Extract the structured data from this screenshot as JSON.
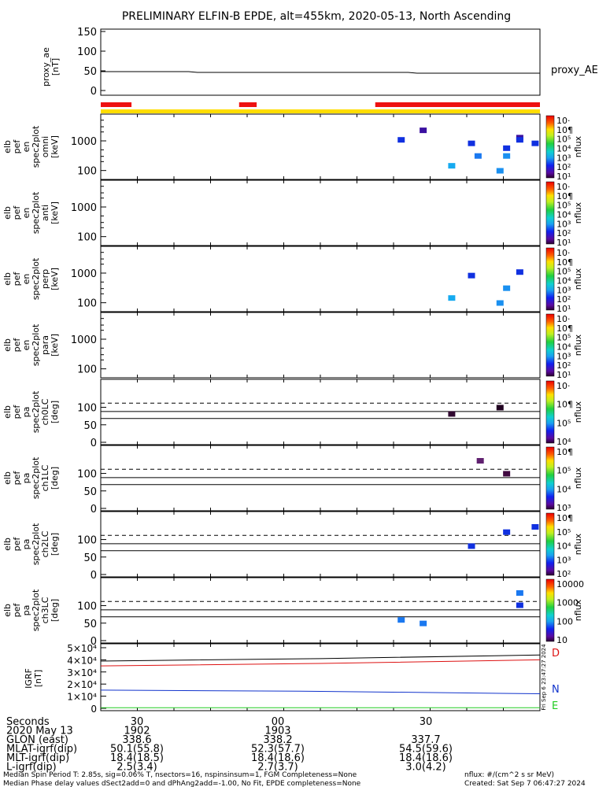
{
  "title": "PRELIMINARY ELFIN-B EPDE, alt=455km, 2020-05-13, North Ascending",
  "colors": {
    "red_bar": "#ee1111",
    "yellow_bar": "#ffdd00",
    "igrf_D": "#dd1111",
    "igrf_N": "#1133cc",
    "igrf_E": "#22cc22"
  },
  "chart_data": [
    {
      "id": "proxy_ae",
      "type": "line",
      "ylabel": [
        "proxy_ae",
        "[nT]"
      ],
      "yticks": [
        "150",
        "100",
        "50",
        "0"
      ],
      "ylim": [
        0,
        150
      ],
      "series": [
        {
          "name": "proxy_AE",
          "points": [
            [
              0,
              48
            ],
            [
              0.2,
              48
            ],
            [
              0.22,
              46
            ],
            [
              0.7,
              46
            ],
            [
              0.72,
              44
            ],
            [
              1,
              44
            ]
          ]
        }
      ]
    },
    {
      "id": "flag_bars",
      "type": "bar",
      "red_segments": [
        [
          0.0,
          0.07
        ],
        [
          0.315,
          0.355
        ],
        [
          0.625,
          1.0
        ]
      ],
      "yellow_segment": [
        0.0,
        1.0
      ]
    },
    {
      "id": "omni",
      "type": "heatmap",
      "ylabel": [
        "elb",
        "pef",
        "en",
        "spec2plot",
        "omni",
        "[keV]"
      ],
      "yticks": [
        "1000",
        "100"
      ],
      "ylim_log": [
        50,
        8000
      ],
      "colorbar_label": "nflux",
      "colorbar_ticks": [
        "10·",
        "10¶",
        "10⁵",
        "10⁴",
        "10³",
        "10²",
        "10¹"
      ],
      "cells": [
        {
          "t": 0.685,
          "e": 1050,
          "c": "#1030e0"
        },
        {
          "t": 0.735,
          "e": 2200,
          "c": "#3a10a0"
        },
        {
          "t": 0.8,
          "e": 140,
          "c": "#16aaf0"
        },
        {
          "t": 0.845,
          "e": 800,
          "c": "#1030e0"
        },
        {
          "t": 0.86,
          "e": 300,
          "c": "#1a78f0"
        },
        {
          "t": 0.91,
          "e": 95,
          "c": "#1a90f0"
        },
        {
          "t": 0.925,
          "e": 550,
          "c": "#1030e0"
        },
        {
          "t": 0.925,
          "e": 300,
          "c": "#1a90f0"
        },
        {
          "t": 0.955,
          "e": 1250,
          "c": "#3a10a0"
        },
        {
          "t": 0.955,
          "e": 1050,
          "c": "#1030e0"
        },
        {
          "t": 0.99,
          "e": 800,
          "c": "#1030e0"
        }
      ]
    },
    {
      "id": "anti",
      "type": "heatmap",
      "ylabel": [
        "elb",
        "pef",
        "en",
        "spec2plot",
        "anti",
        "[keV]"
      ],
      "yticks": [
        "1000",
        "100"
      ],
      "ylim_log": [
        50,
        8000
      ],
      "colorbar_label": "nflux",
      "colorbar_ticks": [
        "10·",
        "10¶",
        "10⁵",
        "10⁴",
        "10³",
        "10²",
        "10¹"
      ],
      "cells": []
    },
    {
      "id": "perp",
      "type": "heatmap",
      "ylabel": [
        "elb",
        "pef",
        "en",
        "spec2plot",
        "perp",
        "[keV]"
      ],
      "yticks": [
        "1000",
        "100"
      ],
      "ylim_log": [
        50,
        8000
      ],
      "colorbar_label": "nflux",
      "colorbar_ticks": [
        "10·",
        "10¶",
        "10⁵",
        "10⁴",
        "10³",
        "10²",
        "10¹"
      ],
      "cells": [
        {
          "t": 0.8,
          "e": 140,
          "c": "#16aaf0"
        },
        {
          "t": 0.845,
          "e": 800,
          "c": "#1030e0"
        },
        {
          "t": 0.91,
          "e": 95,
          "c": "#1a90f0"
        },
        {
          "t": 0.925,
          "e": 300,
          "c": "#1a90f0"
        },
        {
          "t": 0.955,
          "e": 1050,
          "c": "#1030e0"
        }
      ]
    },
    {
      "id": "para",
      "type": "heatmap",
      "ylabel": [
        "elb",
        "pef",
        "en",
        "spec2plot",
        "para",
        "[keV]"
      ],
      "yticks": [
        "1000",
        "100"
      ],
      "ylim_log": [
        50,
        8000
      ],
      "colorbar_label": "nflux",
      "colorbar_ticks": [
        "10·",
        "10¶",
        "10⁵",
        "10⁴",
        "10³",
        "10²",
        "10¹"
      ],
      "cells": []
    },
    {
      "id": "ch0LC",
      "type": "heatmap",
      "ylabel": [
        "elb",
        "pef",
        "pa",
        "spec2plot",
        "ch0LC",
        "[deg]"
      ],
      "yticks": [
        "100",
        "50",
        "0"
      ],
      "ylim": [
        0,
        180
      ],
      "colorbar_label": "nflux",
      "colorbar_ticks": [
        "10·",
        "10¶",
        "10⁵",
        "10⁴"
      ],
      "cells": [
        {
          "t": 0.8,
          "pa": 80,
          "c": "#300830"
        },
        {
          "t": 0.91,
          "pa": 98,
          "c": "#200020"
        }
      ]
    },
    {
      "id": "ch1LC",
      "type": "heatmap",
      "ylabel": [
        "elb",
        "pef",
        "pa",
        "spec2plot",
        "ch1LC",
        "[deg]"
      ],
      "yticks": [
        "100",
        "50",
        "0"
      ],
      "ylim": [
        0,
        180
      ],
      "colorbar_label": "nflux",
      "colorbar_ticks": [
        "10¶",
        "10⁵",
        "10⁴",
        "10³"
      ],
      "cells": [
        {
          "t": 0.865,
          "pa": 135,
          "c": "#602070"
        },
        {
          "t": 0.925,
          "pa": 98,
          "c": "#400840"
        }
      ]
    },
    {
      "id": "ch2LC",
      "type": "heatmap",
      "ylabel": [
        "elb",
        "pef",
        "pa",
        "spec2plot",
        "ch2LC",
        "[deg]"
      ],
      "yticks": [
        "100",
        "50",
        "0"
      ],
      "ylim": [
        0,
        180
      ],
      "colorbar_label": "nflux",
      "colorbar_ticks": [
        "10¶",
        "10⁵",
        "10⁴",
        "10³",
        "10²"
      ],
      "cells": [
        {
          "t": 0.845,
          "pa": 80,
          "c": "#1030e0"
        },
        {
          "t": 0.925,
          "pa": 120,
          "c": "#1030e0"
        },
        {
          "t": 0.99,
          "pa": 135,
          "c": "#1030e0"
        }
      ]
    },
    {
      "id": "ch3LC",
      "type": "heatmap",
      "ylabel": [
        "elb",
        "pef",
        "pa",
        "spec2plot",
        "ch3LC",
        "[deg]"
      ],
      "yticks": [
        "100",
        "50",
        "0"
      ],
      "ylim": [
        0,
        180
      ],
      "colorbar_label": "nflux",
      "colorbar_ticks": [
        "10000",
        "1000",
        "100",
        "10"
      ],
      "cells": [
        {
          "t": 0.685,
          "pa": 58,
          "c": "#1a78f0"
        },
        {
          "t": 0.735,
          "pa": 48,
          "c": "#1a78f0"
        },
        {
          "t": 0.955,
          "pa": 135,
          "c": "#1a78f0"
        },
        {
          "t": 0.955,
          "pa": 100,
          "c": "#1030e0"
        }
      ]
    },
    {
      "id": "igrf",
      "type": "line",
      "ylabel": [
        "IGRF",
        "[nT]"
      ],
      "yticks": [
        "5×10⁴",
        "4×10⁴",
        "3×10⁴",
        "2×10⁴",
        "1×10⁴",
        "0"
      ],
      "ylim": [
        0,
        50000
      ],
      "series": [
        {
          "name": "D",
          "color": "#dd1111",
          "points": [
            [
              0,
              35000
            ],
            [
              0.5,
              37000
            ],
            [
              1,
              40000
            ]
          ]
        },
        {
          "name": "N",
          "color": "#1133cc",
          "points": [
            [
              0,
              15000
            ],
            [
              0.5,
              14000
            ],
            [
              1,
              12000
            ]
          ]
        },
        {
          "name": "E",
          "color": "#22cc22",
          "points": [
            [
              0,
              500
            ],
            [
              1,
              500
            ]
          ]
        },
        {
          "name": "",
          "color": "#000000",
          "points": [
            [
              0,
              39000
            ],
            [
              0.5,
              41000
            ],
            [
              1,
              44000
            ]
          ]
        }
      ],
      "side_text": "Fri Sep  6 23:47:27 2024"
    }
  ],
  "axis_table": {
    "rows": [
      [
        "Seconds",
        "30",
        "00",
        "30"
      ],
      [
        "2020 May 13",
        "1902",
        "1903",
        ""
      ],
      [
        "GLON (east)",
        "338.6",
        "338.2",
        "337.7"
      ],
      [
        "MLAT-igrf(dip)",
        "50.1(55.8)",
        "52.3(57.7)",
        "54.5(59.6)"
      ],
      [
        "MLT-igrf(dip)",
        "18.4(18.5)",
        "18.4(18.6)",
        "18.4(18.6)"
      ],
      [
        "L-igrf(dip)",
        "2.5(3.4)",
        "2.7(3.7)",
        "3.0(4.2)"
      ]
    ]
  },
  "footer": {
    "line1_left": "Median Spin Period T: 2.85s, sig=0.06% T, nsectors=16, nspinsinsum=1, FGM Completeness=None",
    "line1_right": "nflux: #/(cm^2 s sr MeV)",
    "line2_left": "Median Phase delay values dSect2add=0 and dPhAng2add=-1.00, No Fit, EPDE completeness=None",
    "line2_right": "Created: Sat Sep  7 06:47:27 2024"
  }
}
